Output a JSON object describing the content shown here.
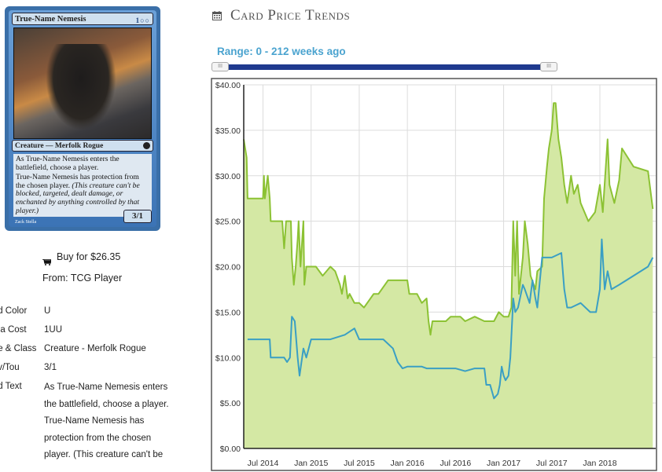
{
  "card": {
    "name": "True-Name Nemesis",
    "mana_symbols": "1○○",
    "type_line": "Creature — Merfolk Rogue",
    "rules_1": "As True-Name Nemesis enters the battlefield, choose a player.",
    "rules_2": "True-Name Nemesis has protection from the chosen player.",
    "reminder": "(This creature can't be blocked, targeted, dealt damage, or enchanted by anything controlled by that player.)",
    "pt": "3/1",
    "artist": "Zack Stella"
  },
  "buy": {
    "label": "Buy for $26.35",
    "from": "From: TCG Player"
  },
  "details": {
    "color_label": "d Color:",
    "color_value": "U",
    "mana_label": "na Cost",
    "mana_value": "1UU",
    "type_label": "e & Class:",
    "type_value": "Creature - Merfolk Rogue",
    "pt_label": "v/Tou:",
    "pt_value": "3/1",
    "text_label": "d Text:",
    "text_value": "As True-Name Nemesis enters the battlefield, choose a player. True-Name Nemesis has protection from the chosen player. (This creature can't be"
  },
  "chart_header": {
    "title": "Card Price Trends",
    "range": "Range: 0 - 212 weeks ago",
    "handle_glyph": "III"
  },
  "colors": {
    "paper_line": "#8cc234",
    "paper_fill": "#d4e8a4",
    "foil_line": "#3a9fc4",
    "slider": "#1f3a8f",
    "link": "#4aa3cf"
  },
  "chart_data": {
    "type": "area",
    "x_unit": "year (decimal)",
    "xlim": [
      2014.3,
      2018.58
    ],
    "ylim": [
      0,
      40
    ],
    "yticks": [
      0,
      5,
      10,
      15,
      20,
      25,
      30,
      35,
      40
    ],
    "ytick_labels": [
      "$0.00",
      "$5.00",
      "$10.00",
      "$15.00",
      "$20.00",
      "$25.00",
      "$30.00",
      "$35.00",
      "$40.00"
    ],
    "xticks": [
      2014.5,
      2015.0,
      2015.5,
      2016.0,
      2016.5,
      2017.0,
      2017.5,
      2018.0
    ],
    "xtick_labels": [
      "Jul 2014",
      "Jan 2015",
      "Jul 2015",
      "Jan 2016",
      "Jul 2016",
      "Jan 2017",
      "Jul 2017",
      "Jan 2018"
    ],
    "grid": true,
    "series": [
      {
        "style": "area",
        "points": [
          [
            2014.3,
            34
          ],
          [
            2014.33,
            32
          ],
          [
            2014.34,
            27.5
          ],
          [
            2014.5,
            27.5
          ],
          [
            2014.51,
            30
          ],
          [
            2014.52,
            27.5
          ],
          [
            2014.55,
            30
          ],
          [
            2014.57,
            27.5
          ],
          [
            2014.58,
            25
          ],
          [
            2014.7,
            25
          ],
          [
            2014.72,
            22
          ],
          [
            2014.74,
            25
          ],
          [
            2014.79,
            25
          ],
          [
            2014.8,
            21
          ],
          [
            2014.82,
            18
          ],
          [
            2014.84,
            20
          ],
          [
            2014.86,
            23
          ],
          [
            2014.87,
            25
          ],
          [
            2014.89,
            20
          ],
          [
            2014.92,
            25
          ],
          [
            2014.93,
            18
          ],
          [
            2014.95,
            20
          ],
          [
            2015.05,
            20
          ],
          [
            2015.12,
            19
          ],
          [
            2015.2,
            20
          ],
          [
            2015.25,
            19.5
          ],
          [
            2015.3,
            18
          ],
          [
            2015.32,
            17
          ],
          [
            2015.35,
            19
          ],
          [
            2015.38,
            16.5
          ],
          [
            2015.4,
            17
          ],
          [
            2015.45,
            16
          ],
          [
            2015.5,
            16
          ],
          [
            2015.55,
            15.5
          ],
          [
            2015.65,
            17
          ],
          [
            2015.7,
            17
          ],
          [
            2015.8,
            18.5
          ],
          [
            2016.0,
            18.5
          ],
          [
            2016.02,
            17
          ],
          [
            2016.1,
            17
          ],
          [
            2016.15,
            16
          ],
          [
            2016.2,
            16.5
          ],
          [
            2016.22,
            14
          ],
          [
            2016.24,
            12.5
          ],
          [
            2016.26,
            14
          ],
          [
            2016.4,
            14
          ],
          [
            2016.45,
            14.5
          ],
          [
            2016.55,
            14.5
          ],
          [
            2016.6,
            14
          ],
          [
            2016.7,
            14.5
          ],
          [
            2016.8,
            14
          ],
          [
            2016.9,
            14
          ],
          [
            2016.95,
            15
          ],
          [
            2017.0,
            14.5
          ],
          [
            2017.05,
            14.5
          ],
          [
            2017.08,
            15.5
          ],
          [
            2017.1,
            25
          ],
          [
            2017.12,
            19
          ],
          [
            2017.14,
            25
          ],
          [
            2017.16,
            17
          ],
          [
            2017.2,
            21
          ],
          [
            2017.22,
            25
          ],
          [
            2017.25,
            22.5
          ],
          [
            2017.28,
            19
          ],
          [
            2017.33,
            17.5
          ],
          [
            2017.35,
            19.5
          ],
          [
            2017.4,
            20
          ],
          [
            2017.42,
            27.5
          ],
          [
            2017.45,
            31
          ],
          [
            2017.47,
            33
          ],
          [
            2017.5,
            35
          ],
          [
            2017.52,
            38
          ],
          [
            2017.54,
            38
          ],
          [
            2017.57,
            34
          ],
          [
            2017.6,
            32
          ],
          [
            2017.63,
            29
          ],
          [
            2017.66,
            27
          ],
          [
            2017.7,
            30
          ],
          [
            2017.73,
            28
          ],
          [
            2017.77,
            29
          ],
          [
            2017.8,
            27
          ],
          [
            2017.88,
            25
          ],
          [
            2017.95,
            26
          ],
          [
            2018.0,
            29
          ],
          [
            2018.03,
            26
          ],
          [
            2018.08,
            34
          ],
          [
            2018.1,
            29
          ],
          [
            2018.15,
            27
          ],
          [
            2018.2,
            29.5
          ],
          [
            2018.23,
            33
          ],
          [
            2018.35,
            31
          ],
          [
            2018.5,
            30.5
          ],
          [
            2018.55,
            26.35
          ]
        ]
      },
      {
        "style": "line",
        "points": [
          [
            2014.34,
            12
          ],
          [
            2014.57,
            12
          ],
          [
            2014.58,
            10
          ],
          [
            2014.72,
            10
          ],
          [
            2014.75,
            9.5
          ],
          [
            2014.78,
            10
          ],
          [
            2014.8,
            14.5
          ],
          [
            2014.83,
            14
          ],
          [
            2014.86,
            10
          ],
          [
            2014.88,
            8
          ],
          [
            2014.92,
            11
          ],
          [
            2014.95,
            10
          ],
          [
            2015.0,
            12
          ],
          [
            2015.2,
            12
          ],
          [
            2015.35,
            12.5
          ],
          [
            2015.45,
            13.2
          ],
          [
            2015.5,
            12
          ],
          [
            2015.75,
            12
          ],
          [
            2015.85,
            11
          ],
          [
            2015.9,
            9.5
          ],
          [
            2015.95,
            8.8
          ],
          [
            2016.0,
            9
          ],
          [
            2016.15,
            9
          ],
          [
            2016.2,
            8.8
          ],
          [
            2016.5,
            8.8
          ],
          [
            2016.6,
            8.5
          ],
          [
            2016.7,
            8.8
          ],
          [
            2016.8,
            8.8
          ],
          [
            2016.82,
            7
          ],
          [
            2016.86,
            7
          ],
          [
            2016.9,
            5.5
          ],
          [
            2016.94,
            6
          ],
          [
            2016.96,
            7
          ],
          [
            2016.98,
            9
          ],
          [
            2017.0,
            8
          ],
          [
            2017.02,
            7.5
          ],
          [
            2017.05,
            8
          ],
          [
            2017.07,
            10
          ],
          [
            2017.1,
            16.5
          ],
          [
            2017.12,
            15
          ],
          [
            2017.15,
            15.5
          ],
          [
            2017.2,
            18
          ],
          [
            2017.22,
            17.5
          ],
          [
            2017.27,
            16
          ],
          [
            2017.3,
            18.5
          ],
          [
            2017.33,
            16.5
          ],
          [
            2017.35,
            15.5
          ],
          [
            2017.4,
            21
          ],
          [
            2017.5,
            21
          ],
          [
            2017.6,
            21.5
          ],
          [
            2017.63,
            17.5
          ],
          [
            2017.66,
            15.5
          ],
          [
            2017.7,
            15.5
          ],
          [
            2017.8,
            16
          ],
          [
            2017.9,
            15
          ],
          [
            2017.96,
            15
          ],
          [
            2018.0,
            17.5
          ],
          [
            2018.02,
            23
          ],
          [
            2018.05,
            17.5
          ],
          [
            2018.08,
            19.5
          ],
          [
            2018.12,
            17.5
          ],
          [
            2018.2,
            18
          ],
          [
            2018.35,
            19
          ],
          [
            2018.5,
            20
          ],
          [
            2018.55,
            21
          ]
        ]
      }
    ]
  }
}
